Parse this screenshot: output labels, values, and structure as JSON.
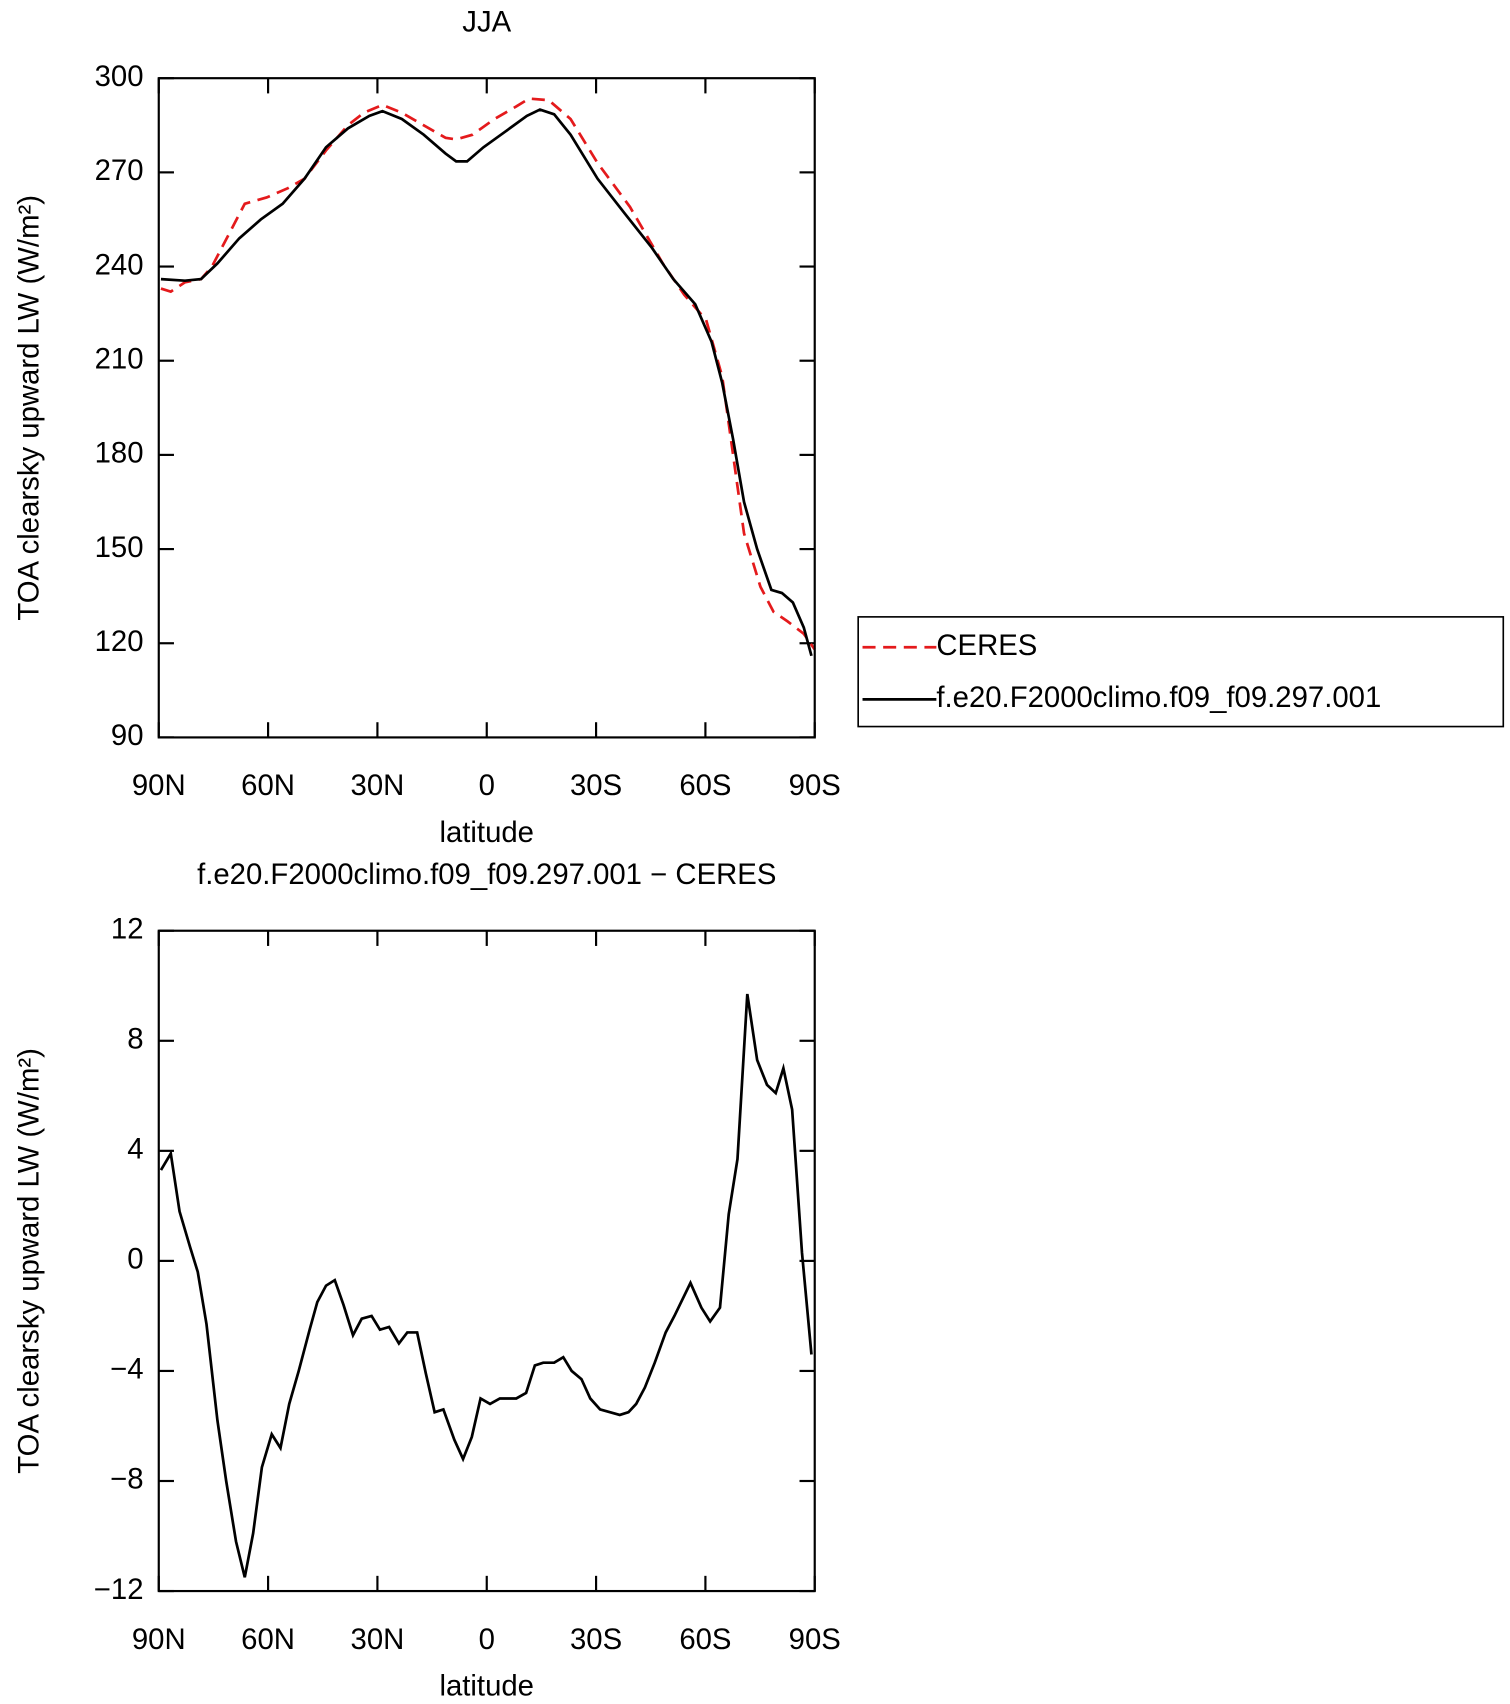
{
  "chart_data": [
    {
      "type": "line",
      "title": "JJA",
      "xlabel": "latitude",
      "ylabel": "TOA clearsky upward LW (W/m²)",
      "xlim": [
        90,
        -90
      ],
      "xticks": [
        {
          "value": 90,
          "label": "90N"
        },
        {
          "value": 60,
          "label": "60N"
        },
        {
          "value": 30,
          "label": "30N"
        },
        0,
        {
          "value": -30,
          "label": "30S"
        },
        {
          "value": -60,
          "label": "60S"
        },
        {
          "value": -90,
          "label": "90S"
        }
      ],
      "ylim": [
        90,
        300
      ],
      "yticks": [
        90,
        120,
        150,
        180,
        210,
        240,
        270,
        300
      ],
      "legend": "right",
      "series": [
        {
          "name": "CERES",
          "color": "#e41a1c",
          "linestyle": "dashed",
          "x": [
            89.4,
            86.7,
            82.8,
            78.4,
            75.4,
            70.9,
            66.4,
            60.4,
            54.5,
            50,
            44.1,
            38.1,
            33.7,
            28.6,
            23.3,
            17.3,
            11.3,
            8.4,
            3.9,
            -2.1,
            -8.1,
            -11.6,
            -17,
            -23,
            -30.4,
            -39.3,
            -48.3,
            -54.2,
            -60.2,
            -64.6,
            -67.6,
            -70.6,
            -75.1,
            -78.7,
            -82.5,
            -87,
            -90
          ],
          "values": [
            233,
            232,
            235,
            236,
            240,
            250,
            260,
            262,
            265,
            268,
            277,
            285,
            289,
            291.5,
            289,
            285,
            281,
            280.5,
            282,
            287,
            291,
            293.5,
            293,
            287,
            273,
            259,
            241,
            231,
            223,
            205,
            180,
            155,
            138,
            130,
            127,
            123,
            118
          ]
        },
        {
          "name": "f.e20.F2000climo.f09_f09.297.001",
          "color": "#000000",
          "linestyle": "solid",
          "x": [
            89.4,
            82.8,
            78.4,
            73.9,
            67.9,
            62,
            56,
            50,
            44.1,
            38.1,
            32.2,
            28.6,
            23.3,
            17.3,
            11.3,
            8.4,
            5.4,
            0.9,
            -5.1,
            -11,
            -14.6,
            -18.5,
            -23,
            -30.4,
            -37.8,
            -45.3,
            -51.2,
            -57.2,
            -61.7,
            -64.6,
            -67.6,
            -70.6,
            -74.2,
            -78.1,
            -81,
            -84,
            -87,
            -89.1
          ],
          "values": [
            236,
            235.5,
            236,
            241,
            249,
            255,
            260,
            268,
            278,
            284,
            288,
            289.5,
            287,
            282,
            276,
            273.5,
            273.5,
            278,
            283,
            288,
            290,
            288.5,
            282,
            268,
            257,
            246,
            236,
            228,
            216,
            203,
            185,
            165,
            150,
            137,
            136,
            133,
            125,
            116
          ]
        }
      ]
    },
    {
      "type": "line",
      "title": "f.e20.F2000climo.f09_f09.297.001 − CERES",
      "xlabel": "latitude",
      "ylabel": "TOA clearsky upward LW (W/m²)",
      "xlim": [
        90,
        -90
      ],
      "xticks": [
        {
          "value": 90,
          "label": "90N"
        },
        {
          "value": 60,
          "label": "60N"
        },
        {
          "value": 30,
          "label": "30N"
        },
        0,
        {
          "value": -30,
          "label": "30S"
        },
        {
          "value": -60,
          "label": "60S"
        },
        {
          "value": -90,
          "label": "90S"
        }
      ],
      "ylim": [
        -12,
        12
      ],
      "yticks": [
        {
          "value": -12,
          "label": "−12"
        },
        {
          "value": -8,
          "label": "−8"
        },
        {
          "value": -4,
          "label": "−4"
        },
        0,
        4,
        8,
        12
      ],
      "series": [
        {
          "color": "#000000",
          "linestyle": "solid",
          "x": [
            89.4,
            86.7,
            84.3,
            81.4,
            79.3,
            76.9,
            73.9,
            71.5,
            68.8,
            66.4,
            64.1,
            61.7,
            59,
            56.6,
            54.2,
            51.6,
            48.6,
            46.5,
            44.1,
            41.7,
            39.3,
            36.7,
            34.3,
            31.6,
            29.3,
            26.8,
            24.1,
            21.8,
            19.1,
            16.7,
            14.3,
            11.9,
            8.9,
            6.5,
            4.1,
            1.7,
            -0.9,
            -3.6,
            -8.1,
            -10.8,
            -13.2,
            -15.5,
            -18.5,
            -21,
            -23.3,
            -26,
            -28.4,
            -31.1,
            -36.5,
            -38.9,
            -41,
            -43.4,
            -46.1,
            -49.1,
            -51.5,
            -55.9,
            -58.9,
            -61.3,
            -64,
            -66.4,
            -68.8,
            -71.5,
            -74.2,
            -76.9,
            -79.3,
            -81.4,
            -83.8,
            -86.5,
            -89.1
          ],
          "values": [
            3.3,
            3.9,
            1.8,
            0.5,
            -0.4,
            -2.3,
            -5.8,
            -8,
            -10.2,
            -11.5,
            -9.9,
            -7.5,
            -6.3,
            -6.8,
            -5.2,
            -4,
            -2.5,
            -1.5,
            -0.9,
            -0.7,
            -1.6,
            -2.7,
            -2.1,
            -2.0,
            -2.5,
            -2.4,
            -3.0,
            -2.6,
            -2.6,
            -4.1,
            -5.5,
            -5.4,
            -6.5,
            -7.2,
            -6.4,
            -5.0,
            -5.2,
            -5.0,
            -5.0,
            -4.8,
            -3.8,
            -3.7,
            -3.7,
            -3.5,
            -4.0,
            -4.3,
            -5.0,
            -5.4,
            -5.6,
            -5.5,
            -5.2,
            -4.6,
            -3.7,
            -2.6,
            -2.0,
            -0.8,
            -1.7,
            -2.2,
            -1.7,
            1.7,
            3.7,
            9.7,
            7.3,
            6.4,
            6.1,
            7.0,
            5.5,
            0.3,
            -3.4
          ]
        }
      ]
    }
  ]
}
